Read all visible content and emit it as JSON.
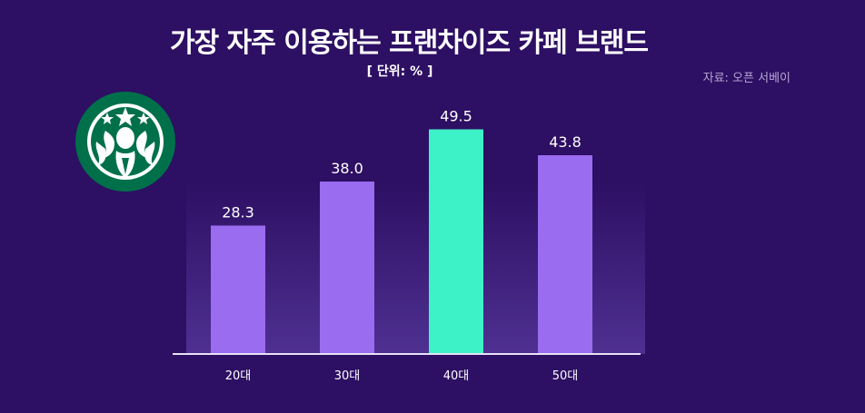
{
  "header": {
    "title": "가장 자주 이용하는 프랜차이즈 카페 브랜드",
    "unit": "[ 단위: % ]",
    "source": "자료: 오픈 서베이"
  },
  "logo": {
    "icon": "siren-logo-icon",
    "color": "#00704a"
  },
  "colors": {
    "background": "#2d0f63",
    "bar": "#9a6cf0",
    "highlight": "#3ef2c8",
    "axis": "#e8e2f5"
  },
  "chart_data": {
    "type": "bar",
    "title": "가장 자주 이용하는 프랜차이즈 카페 브랜드",
    "xlabel": "",
    "ylabel": "",
    "categories": [
      "20대",
      "30대",
      "40대",
      "50대"
    ],
    "values": [
      28.3,
      38.0,
      49.5,
      43.8
    ],
    "value_labels": [
      "28.3",
      "38.0",
      "49.5",
      "43.8"
    ],
    "highlight_index": 2,
    "ylim": [
      0,
      52
    ],
    "grid": false
  }
}
